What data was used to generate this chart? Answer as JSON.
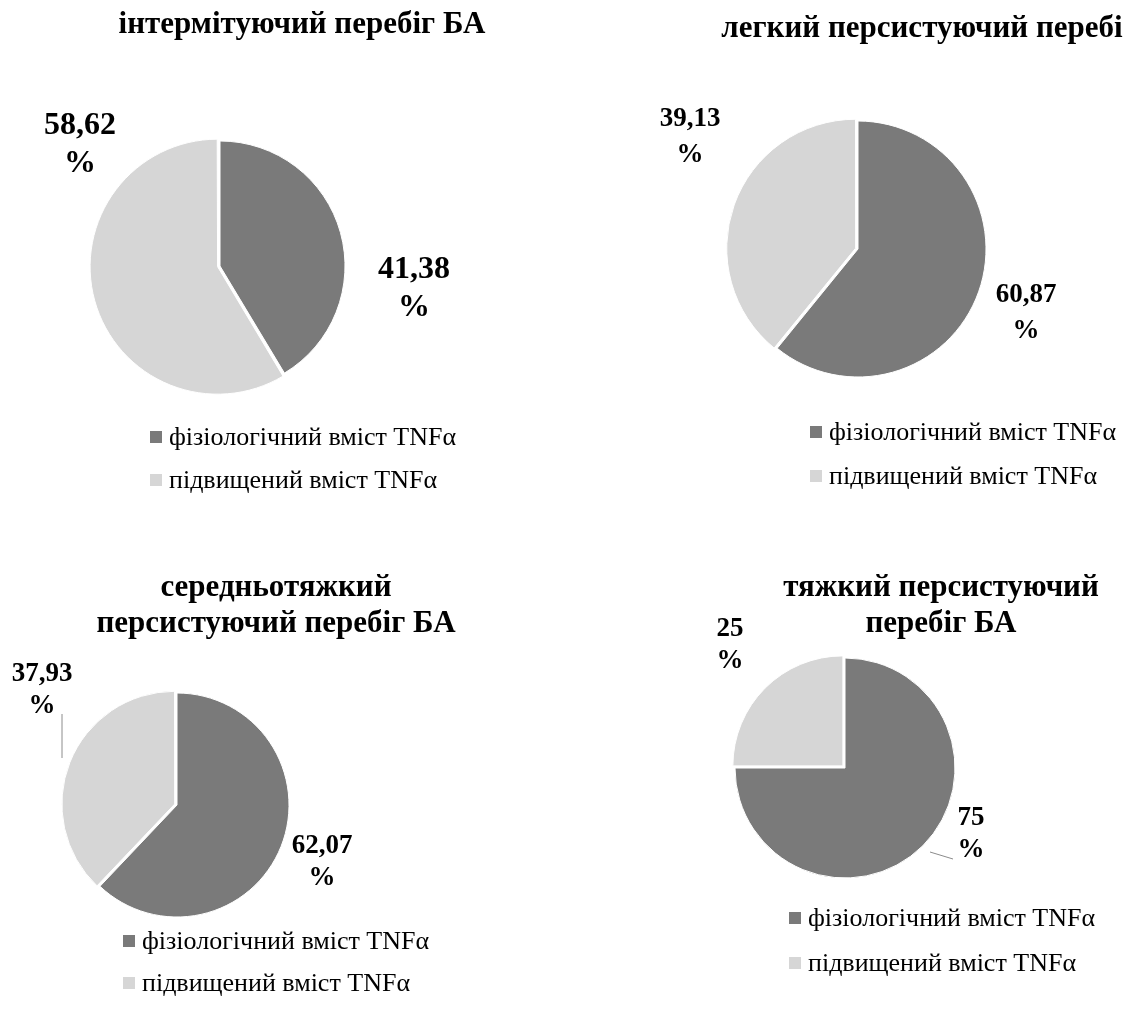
{
  "chart_data": [
    {
      "type": "pie",
      "title": "інтермітуючий перебіг БА",
      "categories": [
        "фізіологічний вміст TNFα",
        "підвищений вміст TNFα"
      ],
      "values": [
        41.38,
        58.62
      ],
      "colors": [
        "#7a7a7a",
        "#d6d6d6"
      ],
      "value_labels": [
        "41,38 %",
        "58,62 %"
      ],
      "legend": "bottom"
    },
    {
      "type": "pie",
      "title": "легкий персистуючий перебі",
      "categories": [
        "фізіологічний вміст TNFα",
        "підвищений вміст TNFα"
      ],
      "values": [
        60.87,
        39.13
      ],
      "colors": [
        "#7a7a7a",
        "#d6d6d6"
      ],
      "value_labels": [
        "60,87 %",
        "39,13 %"
      ],
      "legend": "bottom"
    },
    {
      "type": "pie",
      "title": "середньотяжкий персистуючий перебіг БА",
      "categories": [
        "фізіологічний вміст TNFα",
        "підвищений вміст TNFα"
      ],
      "values": [
        62.07,
        37.93
      ],
      "colors": [
        "#7a7a7a",
        "#d6d6d6"
      ],
      "value_labels": [
        "62,07 %",
        "37,93 %"
      ],
      "legend": "bottom"
    },
    {
      "type": "pie",
      "title": "тяжкий персистуючий перебіг БА",
      "categories": [
        "фізіологічний вміст TNFα",
        "підвищений вміст TNFα"
      ],
      "values": [
        75,
        25
      ],
      "colors": [
        "#7a7a7a",
        "#d6d6d6"
      ],
      "value_labels": [
        "75 %",
        "25 %"
      ],
      "legend": "bottom"
    }
  ]
}
